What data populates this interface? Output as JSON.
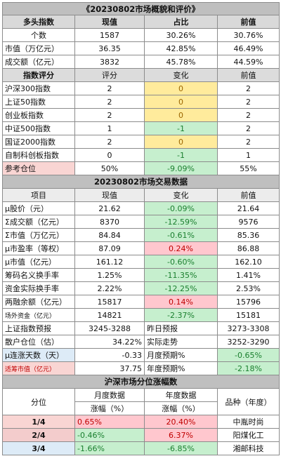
{
  "overview": {
    "title": "《20230802市场概貌和评价》",
    "header": {
      "label": "多头指数",
      "current": "现值",
      "share": "占比",
      "previous": "前值"
    },
    "rows": [
      {
        "label": "个数",
        "current": "1587",
        "share": "30.26%",
        "previous": "30.76%"
      },
      {
        "label": "市值（万亿元）",
        "current": "36.35",
        "share": "42.85%",
        "previous": "46.49%"
      },
      {
        "label": "成交额（亿元）",
        "current": "3832",
        "share": "45.78%",
        "previous": "44.59%"
      }
    ]
  },
  "rating": {
    "header": {
      "label": "指数评分",
      "score": "评分",
      "change": "变化",
      "previous": "前值"
    },
    "rows": [
      {
        "label": "沪深300指数",
        "score": "2",
        "change": "0",
        "previous": "2",
        "tone": "yellow"
      },
      {
        "label": "上证50指数",
        "score": "2",
        "change": "0",
        "previous": "2",
        "tone": "yellow"
      },
      {
        "label": "创业板指数",
        "score": "2",
        "change": "0",
        "previous": "2",
        "tone": "yellow"
      },
      {
        "label": "中证500指数",
        "score": "1",
        "change": "-1",
        "previous": "2",
        "tone": "green"
      },
      {
        "label": "国证2000指数",
        "score": "2",
        "change": "0",
        "previous": "2",
        "tone": "yellow"
      },
      {
        "label": "自制科创板指数",
        "score": "0",
        "change": "-1",
        "previous": "1",
        "tone": "green"
      }
    ],
    "reference": {
      "label": "参考仓位",
      "score": "50%",
      "change": "-9.09%",
      "previous": "55%"
    }
  },
  "trading": {
    "title": "20230802市场交易数据",
    "header": {
      "label": "项目",
      "current": "现值",
      "change": "变化",
      "previous": "前值"
    },
    "rows": [
      {
        "label": "μ股价（元）",
        "current": "21.62",
        "change": "-0.09%",
        "previous": "21.64",
        "tone": "green"
      },
      {
        "label": "Σ成交额（亿元）",
        "current": "8370",
        "change": "-12.59%",
        "previous": "9576",
        "tone": "green"
      },
      {
        "label": "Σ市值（万亿元）",
        "current": "84.84",
        "change": "-0.61%",
        "previous": "85.36",
        "tone": "green"
      },
      {
        "label": "μ市盈率（等权）",
        "current": "87.09",
        "change": "0.24%",
        "previous": "86.88",
        "tone": "red"
      },
      {
        "label": "μ市值（亿元）",
        "current": "161.12",
        "change": "-0.60%",
        "previous": "162.10",
        "tone": "green"
      },
      {
        "label": "筹码名义换手率",
        "current": "1.25%",
        "change": "-11.35%",
        "previous": "1.41%",
        "tone": "green"
      },
      {
        "label": "资金实际换手率",
        "current": "2.22%",
        "change": "-12.25%",
        "previous": "2.53%",
        "tone": "green"
      },
      {
        "label": "两融余额（亿元）",
        "current": "15817",
        "change": "0.14%",
        "previous": "15796",
        "tone": "red"
      },
      {
        "label": "场外资金（亿元）",
        "current": "14821",
        "change": "-2.37%",
        "previous": "15181",
        "tone": "green"
      }
    ],
    "forecast": [
      {
        "label": "上证指数预报",
        "current": "3245-3288",
        "mid_label": "昨日预报",
        "previous": "3273-3308"
      },
      {
        "label": "散户仓位（估）",
        "current": "34.22%",
        "mid_label": "实际走势",
        "previous": "3252-3290"
      }
    ],
    "streak": {
      "label": "μ连涨天数（天）",
      "current": "-0.33",
      "mid_label": "月度预期%",
      "previous": "-0.65%"
    },
    "heat": {
      "label": "适筹市值（亿元）",
      "current": "37.75",
      "mid_label": "年度预期%",
      "previous": "-2.18%"
    }
  },
  "quantile": {
    "title": "沪深市场分位涨幅数",
    "header": {
      "label": "分位",
      "month_top": "月度数据",
      "month_bottom": "涨幅（%）",
      "year_top": "年度数据",
      "year_bottom": "涨幅（%）",
      "stock": "品种（年度）"
    },
    "rows": [
      {
        "label": "1/4",
        "month": "0.65%",
        "year": "20.40%",
        "stock": "中胤时尚",
        "month_tone": "red",
        "year_tone": "red",
        "label_tone": "pink"
      },
      {
        "label": "2/4",
        "month": "-0.46%",
        "year": "6.37%",
        "stock": "阳煤化工",
        "month_tone": "green",
        "year_tone": "red",
        "label_tone": "pink2"
      },
      {
        "label": "3/4",
        "month": "-1.66%",
        "year": "-6.85%",
        "stock": "湘邮科技",
        "month_tone": "green",
        "year_tone": "green",
        "label_tone": "lblue"
      }
    ]
  }
}
